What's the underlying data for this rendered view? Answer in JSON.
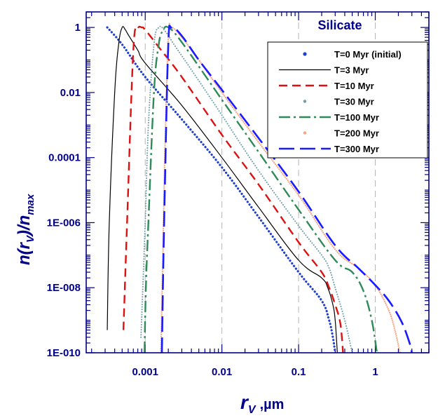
{
  "chart_data": {
    "type": "line",
    "title": "",
    "annotation": "Silicate",
    "xlabel_main": "r",
    "xlabel_sub": "V",
    "xlabel_unit": ",µm",
    "ylabel_parts": [
      "n(r",
      "V",
      ")/n",
      "max"
    ],
    "xscale": "log",
    "yscale": "log",
    "xlim": [
      0.00017,
      5
    ],
    "ylim": [
      1e-10,
      3
    ],
    "xticks": [
      {
        "value": 0.001,
        "label": "0.001"
      },
      {
        "value": 0.01,
        "label": "0.01"
      },
      {
        "value": 0.1,
        "label": "0.1"
      },
      {
        "value": 1,
        "label": "1"
      }
    ],
    "yticks": [
      {
        "value": 1,
        "label": "1"
      },
      {
        "value": 0.01,
        "label": "0.01"
      },
      {
        "value": 0.0001,
        "label": "0.0001"
      },
      {
        "value": 1e-06,
        "label": "1E-006"
      },
      {
        "value": 1e-08,
        "label": "1E-008"
      },
      {
        "value": 1e-10,
        "label": "1E-010"
      }
    ],
    "vertical_gridlines_at": [
      0.001,
      0.01,
      0.1,
      1
    ],
    "legend_position": "top-right",
    "series": [
      {
        "name": "T=0 Myr (initial)",
        "style": "dots",
        "color": "#1f3fd0",
        "x": [
          0.00032,
          0.0005,
          0.001,
          0.003,
          0.01,
          0.03,
          0.1,
          0.2,
          0.25,
          0.28,
          0.3
        ],
        "y": [
          1.0,
          0.3,
          0.03,
          0.0015,
          5e-05,
          1.5e-06,
          3e-08,
          4e-09,
          1e-09,
          3e-10,
          1e-10
        ]
      },
      {
        "name": "T=3 Myr",
        "style": "solid",
        "color": "#000000",
        "x": [
          0.00032,
          0.00034,
          0.0004,
          0.00045,
          0.0005,
          0.00055,
          0.0006,
          0.0008,
          0.001,
          0.003,
          0.01,
          0.03,
          0.1,
          0.2,
          0.24,
          0.28,
          0.3,
          0.32
        ],
        "y": [
          5e-10,
          1e-06,
          0.01,
          0.3,
          1.0,
          0.85,
          0.6,
          0.2,
          0.08,
          0.004,
          0.0001,
          3e-06,
          7e-08,
          2e-08,
          1e-08,
          3e-09,
          1e-09,
          1e-10
        ]
      },
      {
        "name": "T=10 Myr",
        "style": "dashed",
        "color": "#dd1111",
        "x": [
          0.00052,
          0.00058,
          0.0007,
          0.0008,
          0.0009,
          0.001,
          0.0015,
          0.003,
          0.01,
          0.03,
          0.1,
          0.2,
          0.25,
          0.3,
          0.35,
          0.38
        ],
        "y": [
          5e-10,
          1e-06,
          0.2,
          0.9,
          1.0,
          0.85,
          0.25,
          0.03,
          0.0005,
          1.5e-05,
          2.5e-07,
          3e-08,
          1e-08,
          3e-09,
          8e-10,
          1e-10
        ]
      },
      {
        "name": "T=30 Myr",
        "style": "dotted-star",
        "color": "#6f9ea8",
        "x": [
          0.00088,
          0.001,
          0.0011,
          0.0013,
          0.0015,
          0.0018,
          0.0025,
          0.004,
          0.01,
          0.03,
          0.1,
          0.2,
          0.25,
          0.3,
          0.4,
          0.5
        ],
        "y": [
          3e-10,
          1e-06,
          0.001,
          0.3,
          1.0,
          0.8,
          0.25,
          0.05,
          0.002,
          4e-05,
          8e-07,
          1e-07,
          4e-08,
          1e-08,
          1e-09,
          1e-10
        ]
      },
      {
        "name": "T=100 Myr",
        "style": "dash-dot",
        "color": "#2e8b57",
        "x": [
          0.00098,
          0.00102,
          0.0011,
          0.0013,
          0.0015,
          0.0017,
          0.002,
          0.003,
          0.01,
          0.03,
          0.1,
          0.3,
          0.5,
          0.7,
          0.9,
          1.05
        ],
        "y": [
          1e-10,
          1e-08,
          1e-06,
          0.01,
          0.3,
          0.8,
          1.0,
          0.35,
          0.006,
          0.00015,
          2.5e-06,
          7e-08,
          3e-08,
          8e-09,
          1e-09,
          1e-10
        ]
      },
      {
        "name": "T=200 Myr",
        "style": "dotted-plus",
        "color": "#f4a582",
        "x": [
          0.0016,
          0.0017,
          0.0018,
          0.002,
          0.0022,
          0.003,
          0.005,
          0.01,
          0.03,
          0.1,
          0.3,
          0.6,
          1.0,
          1.5,
          1.8,
          2.1
        ],
        "y": [
          1e-10,
          1e-07,
          0.0001,
          0.5,
          1.0,
          0.5,
          0.1,
          0.01,
          0.0003,
          7e-06,
          1.5e-07,
          4e-08,
          1.2e-08,
          2e-09,
          5e-10,
          1e-10
        ]
      },
      {
        "name": "T=300 Myr",
        "style": "long-dash",
        "color": "#1a1aff",
        "x": [
          0.00165,
          0.0017,
          0.0018,
          0.002,
          0.0022,
          0.003,
          0.005,
          0.01,
          0.03,
          0.1,
          0.3,
          0.6,
          1.0,
          1.5,
          2.2,
          2.8,
          3.0
        ],
        "y": [
          1e-10,
          1e-08,
          1e-05,
          0.3,
          1.0,
          0.55,
          0.1,
          0.012,
          0.0004,
          9e-06,
          2e-07,
          4e-08,
          1.2e-08,
          4e-09,
          9e-10,
          2e-10,
          1e-10
        ]
      }
    ]
  }
}
